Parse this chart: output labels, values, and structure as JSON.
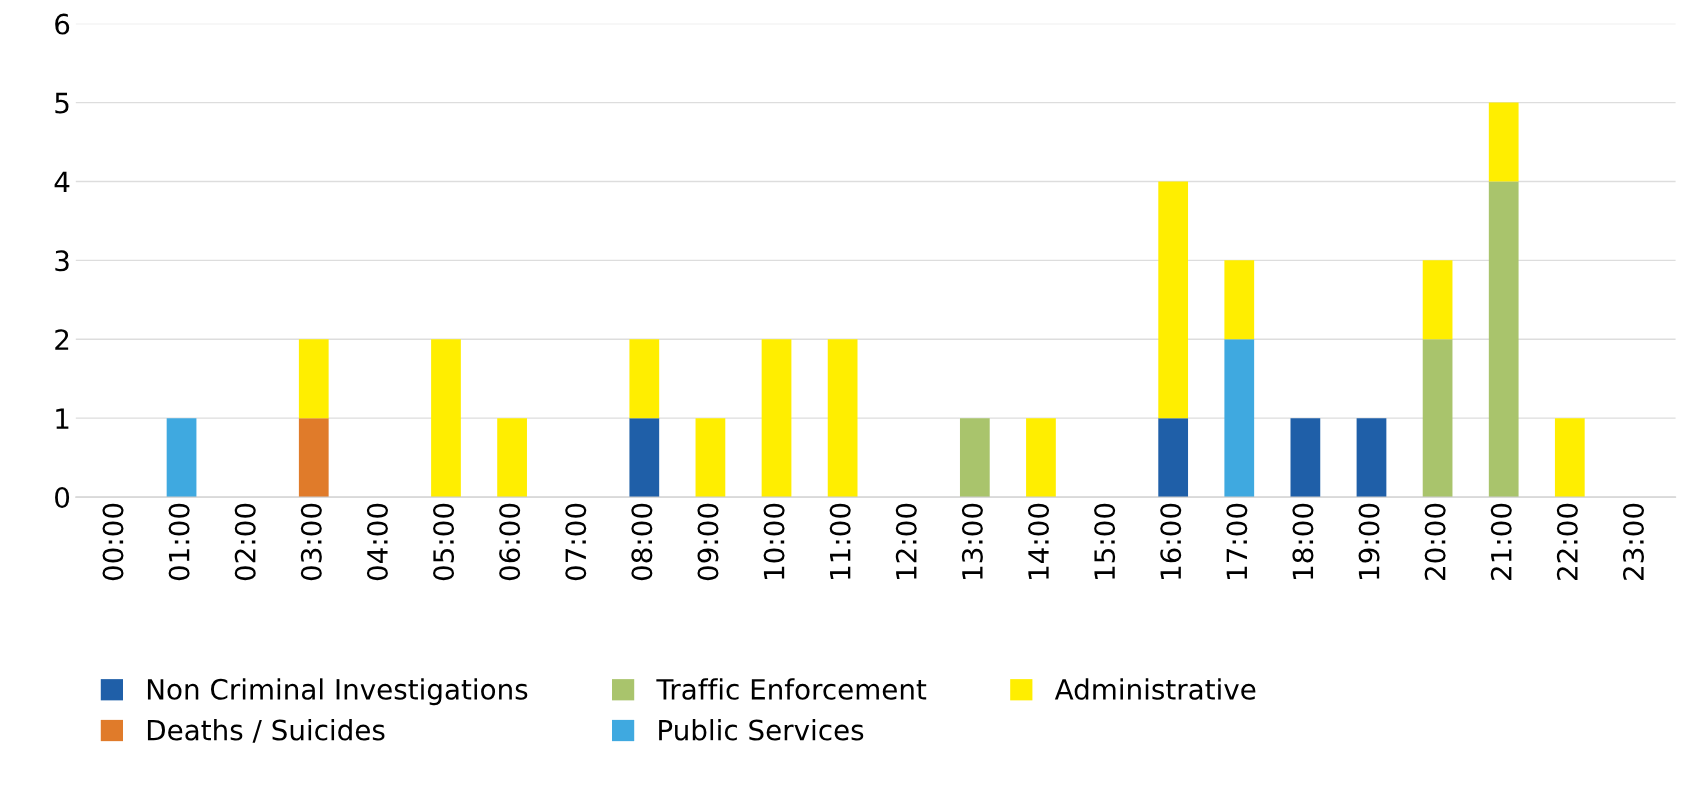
{
  "chart_data": {
    "type": "bar",
    "stacked": true,
    "categories": [
      "00:00",
      "01:00",
      "02:00",
      "03:00",
      "04:00",
      "05:00",
      "06:00",
      "07:00",
      "08:00",
      "09:00",
      "10:00",
      "11:00",
      "12:00",
      "13:00",
      "14:00",
      "15:00",
      "16:00",
      "17:00",
      "18:00",
      "19:00",
      "20:00",
      "21:00",
      "22:00",
      "23:00"
    ],
    "series": [
      {
        "name": "Non Criminal Investigations",
        "color": "#1f5fa8",
        "values": [
          0,
          0,
          0,
          0,
          0,
          0,
          0,
          0,
          1,
          0,
          0,
          0,
          0,
          0,
          0,
          0,
          1,
          0,
          1,
          1,
          0,
          0,
          0,
          0
        ]
      },
      {
        "name": "Deaths / Suicides",
        "color": "#e07b2a",
        "values": [
          0,
          0,
          0,
          1,
          0,
          0,
          0,
          0,
          0,
          0,
          0,
          0,
          0,
          0,
          0,
          0,
          0,
          0,
          0,
          0,
          0,
          0,
          0,
          0
        ]
      },
      {
        "name": "Traffic Enforcement",
        "color": "#a9c46c",
        "values": [
          0,
          0,
          0,
          0,
          0,
          0,
          0,
          0,
          0,
          0,
          0,
          0,
          0,
          1,
          0,
          0,
          0,
          0,
          0,
          0,
          2,
          4,
          0,
          0
        ]
      },
      {
        "name": "Public Services",
        "color": "#3fa9e0",
        "values": [
          0,
          1,
          0,
          0,
          0,
          0,
          0,
          0,
          0,
          0,
          0,
          0,
          0,
          0,
          0,
          0,
          0,
          2,
          0,
          0,
          0,
          0,
          0,
          0
        ]
      },
      {
        "name": "Administrative",
        "color": "#ffee00",
        "values": [
          0,
          0,
          0,
          1,
          0,
          2,
          1,
          0,
          1,
          1,
          2,
          2,
          0,
          0,
          1,
          0,
          3,
          1,
          0,
          0,
          1,
          1,
          1,
          0
        ]
      }
    ],
    "ylim": [
      0,
      6
    ],
    "yticks": [
      0,
      1,
      2,
      3,
      4,
      5,
      6
    ],
    "grid": "y",
    "legend": "bottom"
  }
}
